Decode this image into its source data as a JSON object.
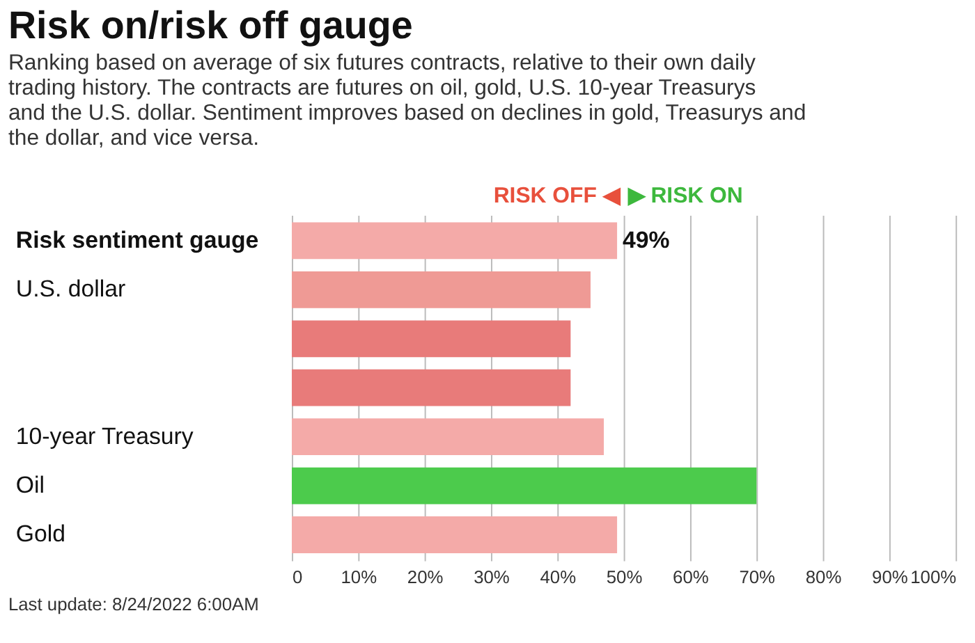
{
  "chart_data": {
    "type": "bar",
    "orientation": "horizontal",
    "title": "Risk on/risk off gauge",
    "subtitle": "Ranking based on average of six futures contracts, relative to their own daily trading history. The contracts are futures on oil, gold, U.S. 10-year Treasurys and the U.S. dollar. Sentiment improves based on declines in gold, Treasurys and the dollar, and vice versa.",
    "categories": [
      "Risk sentiment gauge",
      "U.S. dollar",
      null,
      null,
      "10-year Treasury",
      "Oil",
      "Gold"
    ],
    "values": [
      49,
      45,
      42,
      42,
      47,
      70,
      49
    ],
    "colors": [
      "#f4aaa8",
      "#ef9a95",
      "#e87b7a",
      "#e87b7a",
      "#f4aaa8",
      "#4ccb4c",
      "#f4aaa8"
    ],
    "value_labels": [
      "49%",
      null,
      null,
      null,
      null,
      null,
      null
    ],
    "xlim": [
      0,
      100
    ],
    "xticks": [
      {
        "value": 0,
        "label": "0"
      },
      {
        "value": 10,
        "label": "10%"
      },
      {
        "value": 20,
        "label": "20%"
      },
      {
        "value": 30,
        "label": "30%"
      },
      {
        "value": 40,
        "label": "40%"
      },
      {
        "value": 50,
        "label": "50%"
      },
      {
        "value": 60,
        "label": "60%"
      },
      {
        "value": 70,
        "label": "70%"
      },
      {
        "value": 80,
        "label": "80%"
      },
      {
        "value": 90,
        "label": "90%"
      },
      {
        "value": 100,
        "label": "100%"
      }
    ],
    "grid": "x",
    "annotations": [
      "RISK OFF ◀",
      "▶ RISK ON",
      "Last update: 8/24/2022 6:00AM"
    ]
  }
}
